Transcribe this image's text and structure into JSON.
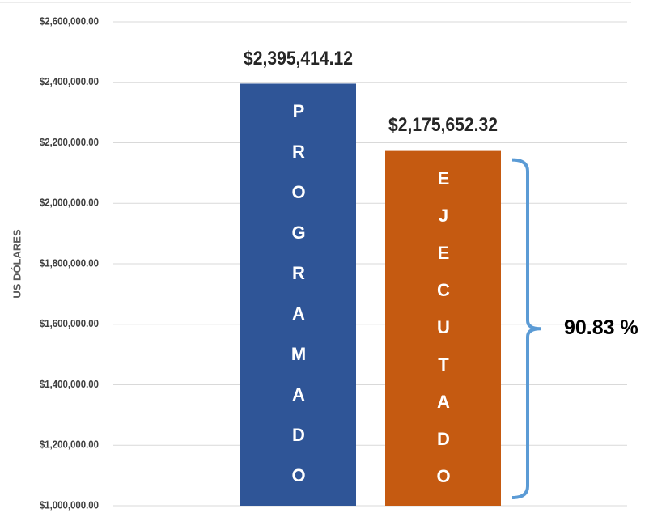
{
  "chart_data": {
    "type": "bar",
    "ylabel": "US  DÓLARES",
    "categories": [
      "PROGRAMADO",
      "EJECUTADO"
    ],
    "values": [
      2395414.12,
      2175652.32
    ],
    "value_labels": [
      "$2,395,414.12",
      "$2,175,652.32"
    ],
    "colors": [
      "#2f5597",
      "#c55a11"
    ],
    "ylim": [
      1000000,
      2600000
    ],
    "yticks": [
      {
        "value": 1000000,
        "label": "$1,000,000.00"
      },
      {
        "value": 1200000,
        "label": "$1,200,000.00"
      },
      {
        "value": 1400000,
        "label": "$1,400,000.00"
      },
      {
        "value": 1600000,
        "label": "$1,600,000.00"
      },
      {
        "value": 1800000,
        "label": "$1,800,000.00"
      },
      {
        "value": 2000000,
        "label": "$2,000,000.00"
      },
      {
        "value": 2200000,
        "label": "$2,200,000.00"
      },
      {
        "value": 2400000,
        "label": "$2,400,000.00"
      },
      {
        "value": 2600000,
        "label": "$2,600,000.00"
      }
    ],
    "grid": true,
    "annotation": "90.83 %"
  }
}
